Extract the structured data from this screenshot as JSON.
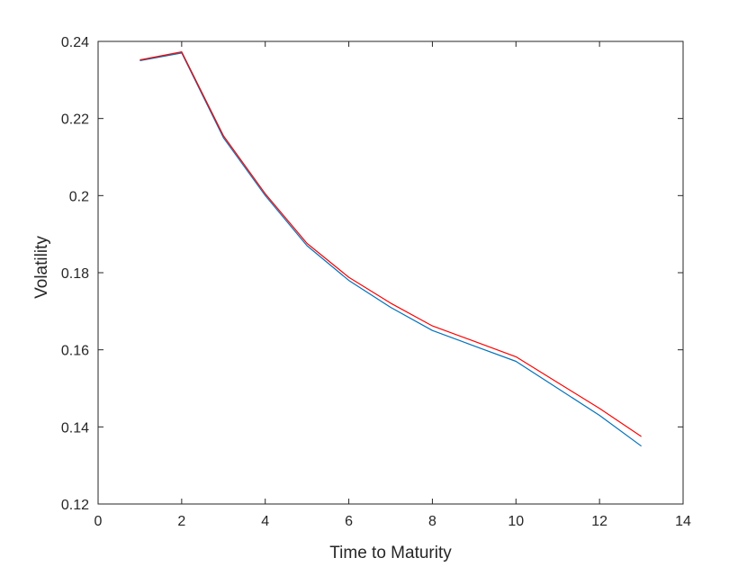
{
  "chart_data": {
    "type": "line",
    "title": "",
    "xlabel": "Time to Maturity",
    "ylabel": "Volatility",
    "xlim": [
      0,
      14
    ],
    "ylim": [
      0.12,
      0.24
    ],
    "xticks": [
      0,
      2,
      4,
      6,
      8,
      10,
      12,
      14
    ],
    "xtick_labels": [
      "0",
      "2",
      "4",
      "6",
      "8",
      "10",
      "12",
      "14"
    ],
    "yticks": [
      0.12,
      0.14,
      0.16,
      0.18,
      0.2,
      0.22,
      0.24
    ],
    "ytick_labels": [
      "0.12",
      "0.14",
      "0.16",
      "0.18",
      "0.2",
      "0.22",
      "0.24"
    ],
    "grid": false,
    "legend": "none",
    "x": [
      1,
      2,
      3,
      4,
      5,
      6,
      7,
      8,
      9,
      10,
      11,
      12,
      13
    ],
    "series": [
      {
        "color": "#0072BD",
        "values": [
          0.235,
          0.237,
          0.215,
          0.2,
          0.187,
          0.178,
          0.171,
          0.165,
          0.161,
          0.157,
          0.15,
          0.143,
          0.135
        ]
      },
      {
        "color": "#FF0000",
        "values": [
          0.2352,
          0.2373,
          0.2155,
          0.2005,
          0.1876,
          0.1788,
          0.1721,
          0.1662,
          0.1622,
          0.1582,
          0.1515,
          0.1448,
          0.1375
        ]
      }
    ]
  }
}
